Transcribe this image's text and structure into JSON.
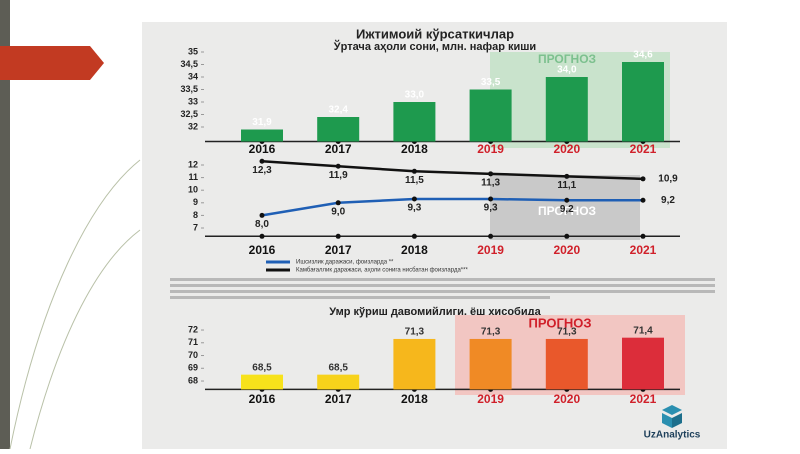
{
  "chart_data": [
    {
      "type": "bar",
      "title": "Ижтимоий кўрсаткичлар",
      "subtitle": "Ўртача аҳоли сони, млн. нафар киши",
      "categories": [
        "2016",
        "2017",
        "2018",
        "2019",
        "2020",
        "2021"
      ],
      "values": [
        31.9,
        32.4,
        33.0,
        33.5,
        34.0,
        34.6
      ],
      "value_labels": [
        "31,9",
        "32,4",
        "33,0",
        "33,5",
        "34,0",
        "34,6"
      ],
      "color": "#1e9a4e",
      "category_colors": [
        "#111111",
        "#111111",
        "#111111",
        "#d0202a",
        "#d0202a",
        "#d0202a"
      ],
      "ylim": [
        31.5,
        35
      ],
      "yticks": [
        32,
        {
          "value": 32.5,
          "label": "32,5"
        },
        33,
        {
          "value": 33.5,
          "label": "33,5"
        },
        34,
        {
          "value": 34.5,
          "label": "34,5"
        },
        35
      ],
      "annotation": "ПРОГНОЗ"
    },
    {
      "type": "line",
      "categories": [
        "2016",
        "2017",
        "2018",
        "2019",
        "2020",
        "2021"
      ],
      "series": [
        {
          "name": "Ишсизлик даражаси, фоизларда **",
          "color": "#1f5fb5",
          "values": [
            8.0,
            9.0,
            9.3,
            9.3,
            9.2,
            9.2
          ],
          "value_labels": [
            "8,0",
            "9,0",
            "9,3",
            "9,3",
            "9,2",
            "9,2"
          ]
        },
        {
          "name": "Камбағаллик даражаси, аҳоли сонига нисбатан фоизларда***",
          "color": "#111111",
          "values": [
            12.3,
            11.9,
            11.5,
            11.3,
            11.1,
            10.9
          ],
          "value_labels": [
            "12,3",
            "11,9",
            "11,5",
            "11,3",
            "11,1",
            "10,9"
          ]
        }
      ],
      "category_colors": [
        "#111111",
        "#111111",
        "#111111",
        "#d0202a",
        "#d0202a",
        "#d0202a"
      ],
      "ylim": [
        6.5,
        12.5
      ],
      "yticks": [
        7,
        8,
        9,
        10,
        11,
        12
      ],
      "annotation": "ПРОГНОЗ"
    },
    {
      "type": "bar",
      "title": "Умр кўриш давомийлиги, ёш ҳисобида",
      "categories": [
        "2016",
        "2017",
        "2018",
        "2019",
        "2020",
        "2021"
      ],
      "values": [
        68.5,
        68.5,
        71.3,
        71.3,
        71.3,
        71.4
      ],
      "value_labels": [
        "68,5",
        "68,5",
        "71,3",
        "71,3",
        "71,3",
        "71,4"
      ],
      "colors": [
        "#f7e21b",
        "#f7d21b",
        "#f6b71c",
        "#f08a25",
        "#e9582b",
        "#dc2d3a"
      ],
      "category_colors": [
        "#111111",
        "#111111",
        "#111111",
        "#d0202a",
        "#d0202a",
        "#d0202a"
      ],
      "ylim": [
        67.5,
        72.3
      ],
      "yticks": [
        68,
        69,
        70,
        71,
        72
      ],
      "annotation": "ПРОГНОЗ"
    }
  ],
  "logo": "UzAnalytics"
}
